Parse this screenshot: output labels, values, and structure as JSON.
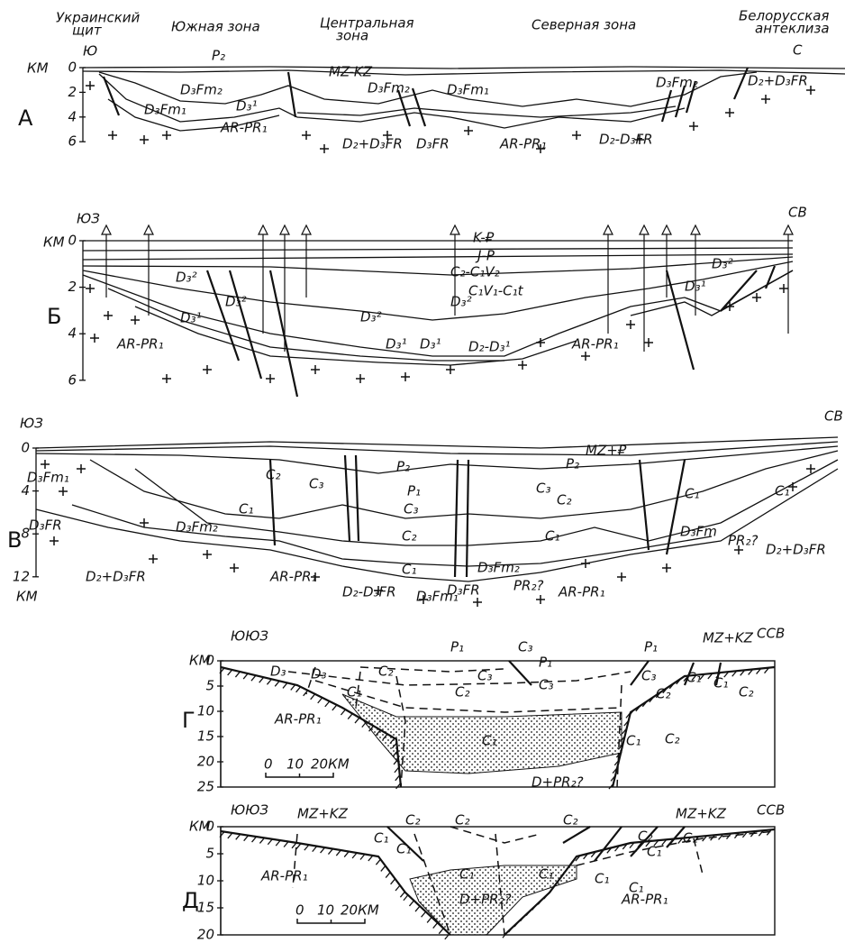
{
  "header": {
    "zones": [
      {
        "lines": [
          "Украинский",
          "щит"
        ]
      },
      {
        "lines": [
          "Южная зона"
        ]
      },
      {
        "lines": [
          "Центральная",
          "зона"
        ]
      },
      {
        "lines": [
          "Северная зона"
        ]
      },
      {
        "lines": [
          "Белорусская",
          "антеклиза"
        ]
      }
    ]
  },
  "panels": [
    {
      "letter": "А",
      "left": "Ю",
      "right": "С",
      "unit": "КМ",
      "depth_ticks": [
        0,
        2,
        4,
        6
      ],
      "labels": [
        "P₂",
        "MZ-KZ",
        "D₃Fm₂",
        "D₃Fm₁",
        "D₃¹",
        "AR-PR₁",
        "D₂+D₃FR",
        "D₃FR",
        "AR-PR₁",
        "D₂-D₃FR",
        "D₃Fm₂",
        "D₃Fm₁",
        "D₃Fm₂",
        "D₂+D₃FR"
      ]
    },
    {
      "letter": "Б",
      "left": "ЮЗ",
      "right": "СВ",
      "unit": "КМ",
      "depth_ticks": [
        0,
        2,
        4,
        6
      ],
      "labels": [
        "K-₽",
        "J-P",
        "C₂-C₁V₂",
        "C₁V₁-C₁t",
        "D₃²",
        "D₃²",
        "D₃²",
        "D₃²",
        "D₃¹",
        "D₃¹",
        "D₃¹",
        "D₂-D₃¹",
        "AR-PR₁",
        "AR-PR₁",
        "D₃²",
        "D₃¹"
      ]
    },
    {
      "letter": "В",
      "left": "ЮЗ",
      "right": "СВ",
      "unit": "КМ",
      "depth_ticks": [
        0,
        4,
        8,
        12
      ],
      "labels": [
        "MZ+₽",
        "P₂",
        "C₂",
        "C₃",
        "P₁",
        "C₁",
        "C₃",
        "C₂",
        "C₁",
        "D₃Fm₁",
        "D₃FR",
        "D₃Fm₂",
        "D₂+D₃FR",
        "AR-PR₁",
        "D₂-D₃FR",
        "D₃Fm₁",
        "D₃Fm₂",
        "D₃FR",
        "PR₂?",
        "AR-PR₁",
        "C₃",
        "P₂",
        "C₂",
        "C₁",
        "D₃Fm",
        "PR₂?",
        "C₁",
        "C₁",
        "D₂+D₃FR"
      ]
    },
    {
      "letter": "Г",
      "left": "ЮЮЗ",
      "right": "ССВ",
      "unit": "КМ",
      "depth_ticks": [
        0,
        5,
        10,
        15,
        20,
        25
      ],
      "scale": [
        "0",
        "10",
        "20КМ"
      ],
      "labels": [
        "P₁",
        "C₃",
        "P₁",
        "MZ+KZ",
        "D₃",
        "D₃",
        "C₂",
        "C₃",
        "C₂",
        "P₁",
        "C₃",
        "C₁",
        "AR-PR₁",
        "C₁",
        "C₁",
        "C₃",
        "C₂",
        "D+PR₂?",
        "C₂",
        "C₁",
        "C₁",
        "C₂"
      ]
    },
    {
      "letter": "Д",
      "left": "ЮЮЗ",
      "right": "ССВ",
      "unit": "КМ",
      "depth_ticks": [
        0,
        5,
        10,
        15,
        20
      ],
      "scale": [
        "0",
        "10",
        "20КМ"
      ],
      "labels": [
        "MZ+KZ",
        "MZ+KZ",
        "C₂",
        "C₂",
        "C₂",
        "C₁",
        "C₁",
        "C₁",
        "C₁",
        "AR-PR₁",
        "D+PR₂?",
        "AR-PR₁",
        "C₁",
        "C₁",
        "C₂",
        "C₁",
        "C₂"
      ]
    }
  ]
}
